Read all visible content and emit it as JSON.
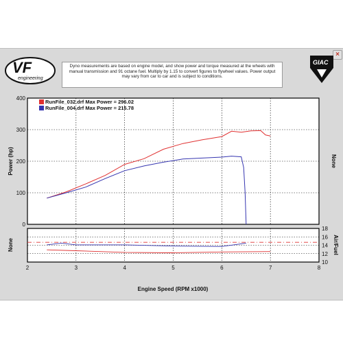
{
  "window": {
    "close_glyph": "×",
    "brand_logo_text": "VF engineering",
    "badge_logo_text": "GIAC",
    "disclaimer": "Dyno measurements are based on engine model, and show power and torque measured at the wheels with manual transmission and 91 octane fuel. Multiply by 1.15 to convert figures to flywheel values. Power output may vary from car to car and is subject to conditions."
  },
  "chart_data": [
    {
      "type": "line",
      "xlabel": "Engine Speed (RPM x1000)",
      "ylabel": "Power (hp)",
      "right_label": "None",
      "xlim": [
        2,
        8
      ],
      "ylim": [
        0,
        400
      ],
      "x_ticks": [
        "2",
        "3",
        "4",
        "5",
        "6",
        "7",
        "8"
      ],
      "y_ticks": [
        "0",
        "100",
        "200",
        "300",
        "400"
      ],
      "grid": true,
      "legend_position": "top-left",
      "series": [
        {
          "name": "RunFile_032.drf Max Power = 296.02",
          "color": "#e03030",
          "points": [
            [
              2.4,
              83
            ],
            [
              2.8,
              103
            ],
            [
              3.2,
              128
            ],
            [
              3.6,
              155
            ],
            [
              4.0,
              190
            ],
            [
              4.4,
              208
            ],
            [
              4.8,
              238
            ],
            [
              5.2,
              256
            ],
            [
              5.6,
              268
            ],
            [
              6.0,
              278
            ],
            [
              6.2,
              295
            ],
            [
              6.4,
              292
            ],
            [
              6.6,
              296
            ],
            [
              6.8,
              297
            ],
            [
              6.9,
              283
            ],
            [
              7.0,
              280
            ]
          ]
        },
        {
          "name": "RunFile_004.drf Max Power = 215.78",
          "color": "#3535b0",
          "points": [
            [
              2.4,
              83
            ],
            [
              2.8,
              100
            ],
            [
              3.2,
              118
            ],
            [
              3.6,
              145
            ],
            [
              4.0,
              170
            ],
            [
              4.4,
              185
            ],
            [
              4.8,
              197
            ],
            [
              5.2,
              207
            ],
            [
              5.6,
              210
            ],
            [
              6.0,
              213
            ],
            [
              6.2,
              216
            ],
            [
              6.4,
              214
            ],
            [
              6.45,
              180
            ],
            [
              6.48,
              100
            ],
            [
              6.5,
              0
            ]
          ]
        }
      ]
    },
    {
      "type": "line",
      "ylabel": "Air/Fuel",
      "left_label": "None",
      "xlim": [
        2,
        8
      ],
      "ylim": [
        10,
        18
      ],
      "y_ticks": [
        "10",
        "12",
        "14",
        "16",
        "18"
      ],
      "grid": true,
      "series": [
        {
          "color": "#e03030",
          "points": [
            [
              2.4,
              12.9
            ],
            [
              3.0,
              12.7
            ],
            [
              4.0,
              12.3
            ],
            [
              5.0,
              12.2
            ],
            [
              6.0,
              12.4
            ],
            [
              7.0,
              12.5
            ]
          ]
        },
        {
          "color": "#3535b0",
          "points": [
            [
              2.4,
              14.1
            ],
            [
              2.7,
              14.5
            ],
            [
              3.0,
              14.1
            ],
            [
              4.0,
              14.1
            ],
            [
              5.0,
              13.8
            ],
            [
              6.0,
              13.7
            ],
            [
              6.5,
              14.5
            ]
          ]
        },
        {
          "color": "#e03030",
          "points": [
            [
              2.0,
              14.7
            ],
            [
              8.0,
              14.7
            ]
          ]
        }
      ]
    }
  ]
}
